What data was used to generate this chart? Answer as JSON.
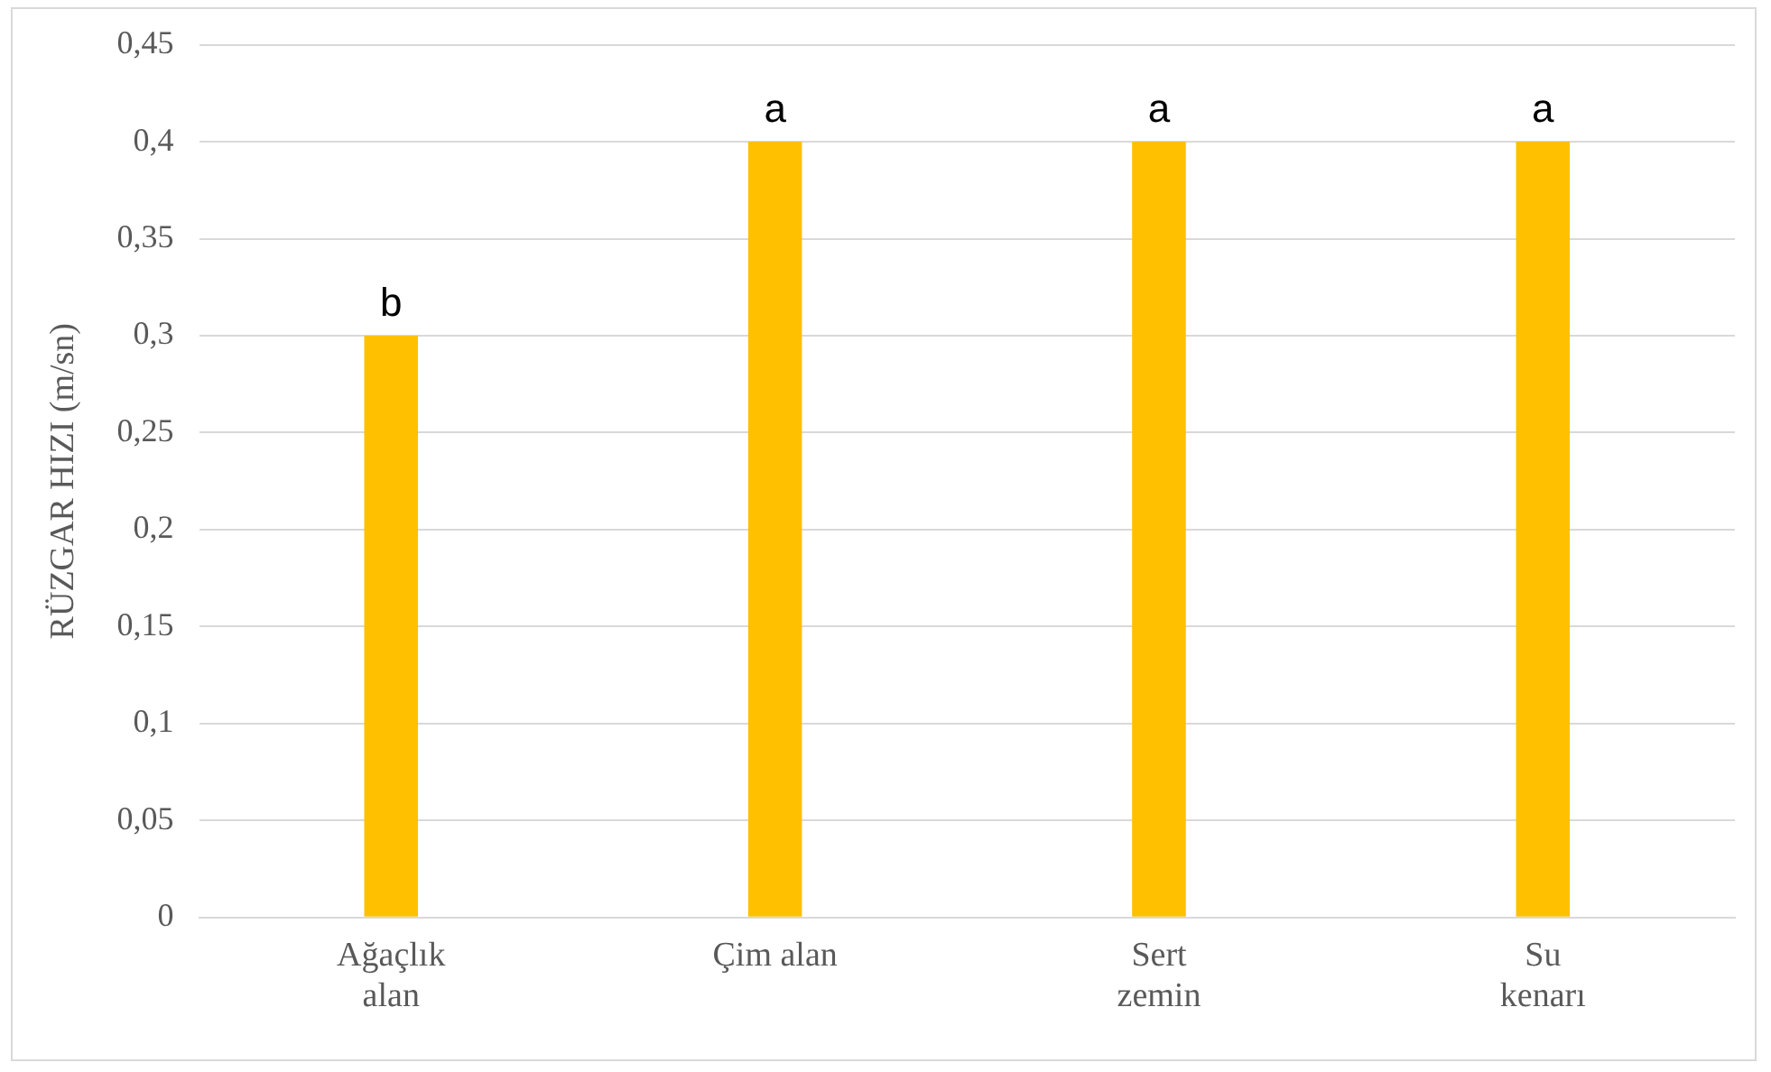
{
  "chart_data": {
    "type": "bar",
    "ylabel": "RÜZGAR HIZI (m/sn)",
    "categories": [
      "Ağaçlık\nalan",
      "Çim alan",
      "Sert\nzemin",
      "Su\nkenarı"
    ],
    "values": [
      0.3,
      0.4,
      0.4,
      0.4
    ],
    "color": "#ffc000",
    "value_labels": [
      "b",
      "a",
      "a",
      "a"
    ],
    "ylim": [
      0,
      0.45
    ],
    "yticks": [
      0,
      {
        "value": 0.05,
        "label": "0,05"
      },
      {
        "value": 0.1,
        "label": "0,1"
      },
      {
        "value": 0.15,
        "label": "0,15"
      },
      {
        "value": 0.2,
        "label": "0,2"
      },
      {
        "value": 0.25,
        "label": "0,25"
      },
      {
        "value": 0.3,
        "label": "0,3"
      },
      {
        "value": 0.35,
        "label": "0,35"
      },
      {
        "value": 0.4,
        "label": "0,4"
      },
      {
        "value": 0.45,
        "label": "0,45"
      }
    ],
    "grid": "y",
    "legend": false
  }
}
